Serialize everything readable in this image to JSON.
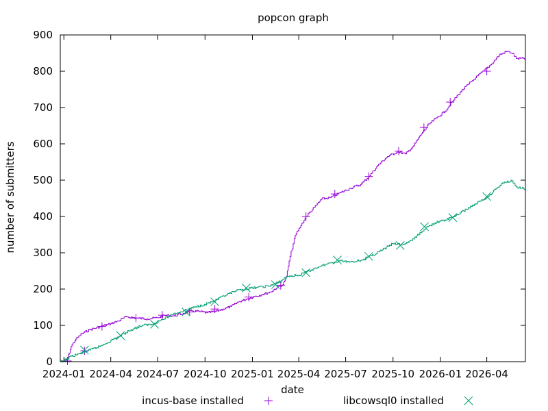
{
  "chart_data": {
    "type": "line",
    "title": "popcon graph",
    "xlabel": "date",
    "ylabel": "number of submitters",
    "ylim": [
      0,
      900
    ],
    "xlim": [
      "2023-12-25",
      "2026-06-15"
    ],
    "y_ticks": [
      0,
      100,
      200,
      300,
      400,
      500,
      600,
      700,
      800,
      900
    ],
    "x_ticks": [
      "2024-01",
      "2024-04",
      "2024-07",
      "2024-10",
      "2025-01",
      "2025-04",
      "2025-07",
      "2025-10",
      "2026-01",
      "2026-04"
    ],
    "x_tick_dates": [
      "2024-01-01",
      "2024-04-01",
      "2024-07-01",
      "2024-10-01",
      "2025-01-01",
      "2025-04-01",
      "2025-07-01",
      "2025-10-01",
      "2026-01-01",
      "2026-04-01"
    ],
    "grid": false,
    "legend_position": "bottom",
    "series": [
      {
        "name": "incus-base installed",
        "color": "#9400d3",
        "marker": "plus",
        "points": [
          [
            "2023-12-25",
            0
          ],
          [
            "2024-01-01",
            0
          ],
          [
            "2024-01-08",
            10
          ],
          [
            "2024-01-15",
            42
          ],
          [
            "2024-01-24",
            62
          ],
          [
            "2024-02-05",
            78
          ],
          [
            "2024-02-20",
            88
          ],
          [
            "2024-03-10",
            96
          ],
          [
            "2024-04-01",
            105
          ],
          [
            "2024-04-15",
            112
          ],
          [
            "2024-05-01",
            124
          ],
          [
            "2024-05-20",
            120
          ],
          [
            "2024-06-10",
            118
          ],
          [
            "2024-07-01",
            121
          ],
          [
            "2024-07-15",
            128
          ],
          [
            "2024-08-01",
            126
          ],
          [
            "2024-08-20",
            133
          ],
          [
            "2024-09-05",
            140
          ],
          [
            "2024-09-20",
            138
          ],
          [
            "2024-10-05",
            135
          ],
          [
            "2024-10-20",
            138
          ],
          [
            "2024-11-05",
            145
          ],
          [
            "2024-11-20",
            152
          ],
          [
            "2024-12-05",
            165
          ],
          [
            "2024-12-20",
            172
          ],
          [
            "2025-01-05",
            180
          ],
          [
            "2025-01-20",
            185
          ],
          [
            "2025-02-05",
            192
          ],
          [
            "2025-02-20",
            207
          ],
          [
            "2025-03-01",
            212
          ],
          [
            "2025-03-08",
            235
          ],
          [
            "2025-03-15",
            290
          ],
          [
            "2025-03-25",
            348
          ],
          [
            "2025-04-05",
            375
          ],
          [
            "2025-04-15",
            400
          ],
          [
            "2025-05-01",
            425
          ],
          [
            "2025-05-15",
            448
          ],
          [
            "2025-06-01",
            452
          ],
          [
            "2025-06-20",
            465
          ],
          [
            "2025-07-10",
            478
          ],
          [
            "2025-07-30",
            488
          ],
          [
            "2025-08-15",
            510
          ],
          [
            "2025-09-01",
            540
          ],
          [
            "2025-09-20",
            565
          ],
          [
            "2025-10-10",
            578
          ],
          [
            "2025-10-25",
            572
          ],
          [
            "2025-11-10",
            595
          ],
          [
            "2025-11-25",
            628
          ],
          [
            "2025-12-10",
            655
          ],
          [
            "2025-12-25",
            672
          ],
          [
            "2026-01-10",
            690
          ],
          [
            "2026-01-25",
            718
          ],
          [
            "2026-02-10",
            745
          ],
          [
            "2026-02-25",
            765
          ],
          [
            "2026-03-10",
            782
          ],
          [
            "2026-03-25",
            800
          ],
          [
            "2026-04-10",
            820
          ],
          [
            "2026-04-25",
            845
          ],
          [
            "2026-05-10",
            855
          ],
          [
            "2026-05-20",
            850
          ],
          [
            "2026-05-28",
            835
          ],
          [
            "2026-06-15",
            835
          ]
        ],
        "marker_points": [
          [
            "2024-01-08",
            2
          ],
          [
            "2024-02-10",
            30
          ],
          [
            "2024-03-15",
            97
          ],
          [
            "2024-05-20",
            120
          ],
          [
            "2024-07-10",
            128
          ],
          [
            "2024-09-01",
            137
          ],
          [
            "2024-10-20",
            145
          ],
          [
            "2024-12-25",
            178
          ],
          [
            "2025-02-25",
            210
          ],
          [
            "2025-04-15",
            400
          ],
          [
            "2025-06-10",
            462
          ],
          [
            "2025-08-15",
            510
          ],
          [
            "2025-10-12",
            580
          ],
          [
            "2025-11-30",
            645
          ],
          [
            "2026-01-20",
            715
          ],
          [
            "2026-04-01",
            800
          ]
        ]
      },
      {
        "name": "libcowsql0 installed",
        "color": "#009e73",
        "marker": "cross",
        "points": [
          [
            "2023-12-25",
            0
          ],
          [
            "2024-01-01",
            3
          ],
          [
            "2024-01-15",
            15
          ],
          [
            "2024-02-01",
            22
          ],
          [
            "2024-02-20",
            32
          ],
          [
            "2024-03-10",
            42
          ],
          [
            "2024-04-01",
            58
          ],
          [
            "2024-04-20",
            72
          ],
          [
            "2024-05-10",
            88
          ],
          [
            "2024-06-01",
            100
          ],
          [
            "2024-06-20",
            103
          ],
          [
            "2024-07-10",
            116
          ],
          [
            "2024-08-01",
            132
          ],
          [
            "2024-08-20",
            140
          ],
          [
            "2024-09-10",
            150
          ],
          [
            "2024-09-30",
            158
          ],
          [
            "2024-10-20",
            168
          ],
          [
            "2024-11-10",
            183
          ],
          [
            "2024-11-30",
            195
          ],
          [
            "2024-12-20",
            200
          ],
          [
            "2025-01-10",
            205
          ],
          [
            "2025-02-01",
            208
          ],
          [
            "2025-02-20",
            218
          ],
          [
            "2025-03-10",
            235
          ],
          [
            "2025-04-01",
            238
          ],
          [
            "2025-04-20",
            250
          ],
          [
            "2025-05-10",
            262
          ],
          [
            "2025-06-01",
            272
          ],
          [
            "2025-06-20",
            278
          ],
          [
            "2025-07-10",
            275
          ],
          [
            "2025-08-01",
            280
          ],
          [
            "2025-08-20",
            292
          ],
          [
            "2025-09-10",
            308
          ],
          [
            "2025-09-30",
            325
          ],
          [
            "2025-10-20",
            322
          ],
          [
            "2025-11-10",
            338
          ],
          [
            "2025-11-30",
            365
          ],
          [
            "2025-12-20",
            382
          ],
          [
            "2026-01-10",
            390
          ],
          [
            "2026-01-30",
            402
          ],
          [
            "2026-02-20",
            420
          ],
          [
            "2026-03-10",
            435
          ],
          [
            "2026-04-01",
            452
          ],
          [
            "2026-04-20",
            478
          ],
          [
            "2026-05-05",
            495
          ],
          [
            "2026-05-20",
            498
          ],
          [
            "2026-05-28",
            482
          ],
          [
            "2026-06-15",
            475
          ]
        ],
        "marker_points": [
          [
            "2024-02-10",
            32
          ],
          [
            "2024-04-20",
            72
          ],
          [
            "2024-06-25",
            103
          ],
          [
            "2024-08-25",
            137
          ],
          [
            "2024-10-20",
            165
          ],
          [
            "2024-12-20",
            203
          ],
          [
            "2025-02-15",
            212
          ],
          [
            "2025-04-15",
            245
          ],
          [
            "2025-06-15",
            280
          ],
          [
            "2025-08-15",
            290
          ],
          [
            "2025-10-15",
            320
          ],
          [
            "2025-12-01",
            372
          ],
          [
            "2026-01-25",
            397
          ],
          [
            "2026-04-01",
            455
          ]
        ]
      }
    ]
  }
}
